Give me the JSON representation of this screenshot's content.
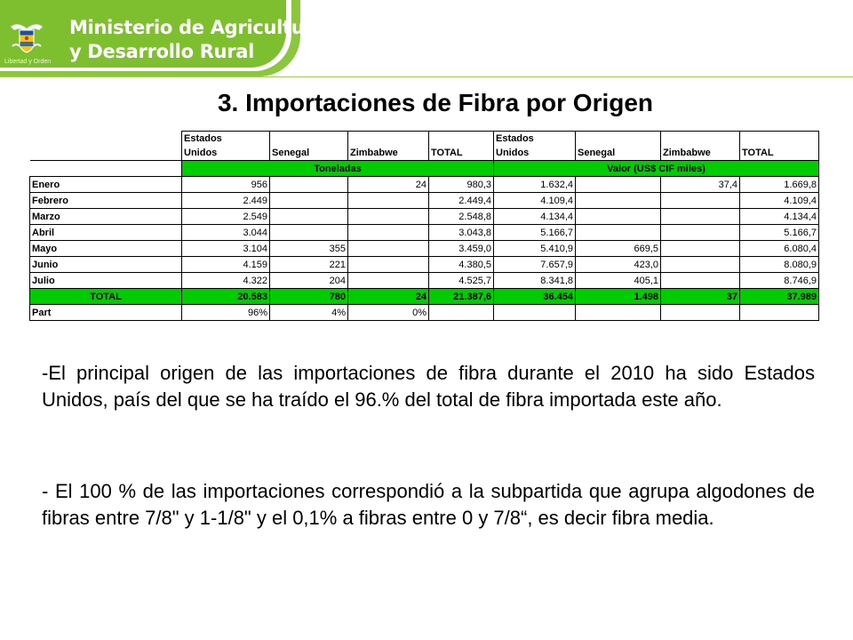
{
  "header": {
    "ministry_line1": "Ministerio de Agricultura",
    "ministry_line2": "y Desarrollo Rural",
    "seal_motto": "Libertad y Orden",
    "brand_green": "#7dbf2e",
    "logo_icon": "coat-of-arms-icon"
  },
  "title": "3.  Importaciones de Fibra por Origen",
  "table": {
    "columns": {
      "tons_us_line1": "Estados",
      "tons_us_line2": "Unidos",
      "tons_senegal": "Senegal",
      "tons_zimbabwe": "Zimbabwe",
      "tons_total": "TOTAL",
      "val_us_line1": "Estados",
      "val_us_line2": "Unidos",
      "val_senegal": "Senegal",
      "val_zimbabwe": "Zimbabwe",
      "val_total": "TOTAL"
    },
    "units_tons": "Toneladas",
    "units_value": "Valor (US$ CIF miles)",
    "rows": [
      {
        "month": "Enero",
        "t_us": "956",
        "t_sen": "",
        "t_zim": "24",
        "t_tot": "980,3",
        "v_us": "1.632,4",
        "v_sen": "",
        "v_zim": "37,4",
        "v_tot": "1.669,8"
      },
      {
        "month": "Febrero",
        "t_us": "2.449",
        "t_sen": "",
        "t_zim": "",
        "t_tot": "2.449,4",
        "v_us": "4.109,4",
        "v_sen": "",
        "v_zim": "",
        "v_tot": "4.109,4"
      },
      {
        "month": "Marzo",
        "t_us": "2.549",
        "t_sen": "",
        "t_zim": "",
        "t_tot": "2.548,8",
        "v_us": "4.134,4",
        "v_sen": "",
        "v_zim": "",
        "v_tot": "4.134,4"
      },
      {
        "month": "Abril",
        "t_us": "3.044",
        "t_sen": "",
        "t_zim": "",
        "t_tot": "3.043,8",
        "v_us": "5.166,7",
        "v_sen": "",
        "v_zim": "",
        "v_tot": "5.166,7"
      },
      {
        "month": "Mayo",
        "t_us": "3.104",
        "t_sen": "355",
        "t_zim": "",
        "t_tot": "3.459,0",
        "v_us": "5.410,9",
        "v_sen": "669,5",
        "v_zim": "",
        "v_tot": "6.080,4"
      },
      {
        "month": "Junio",
        "t_us": "4.159",
        "t_sen": "221",
        "t_zim": "",
        "t_tot": "4.380,5",
        "v_us": "7.657,9",
        "v_sen": "423,0",
        "v_zim": "",
        "v_tot": "8.080,9"
      },
      {
        "month": "Julio",
        "t_us": "4.322",
        "t_sen": "204",
        "t_zim": "",
        "t_tot": "4.525,7",
        "v_us": "8.341,8",
        "v_sen": "405,1",
        "v_zim": "",
        "v_tot": "8.746,9"
      }
    ],
    "total": {
      "label": "TOTAL",
      "t_us": "20.583",
      "t_sen": "780",
      "t_zim": "24",
      "t_tot": "21.387,6",
      "v_us": "36.454",
      "v_sen": "1.498",
      "v_zim": "37",
      "v_tot": "37.989"
    },
    "part": {
      "label": "Part",
      "t_us": "96%",
      "t_sen": "4%",
      "t_zim": "0%"
    },
    "highlight_green": "#00cc00"
  },
  "paragraphs": {
    "p1": "-El principal origen de las importaciones de fibra durante el 2010 ha sido Estados Unidos, país del que se ha traído el 96.% del total de fibra importada este año.",
    "p2": "- El  100 % de las importaciones correspondió a la subpartida que agrupa algodones de fibras entre 7/8\" y 1-1/8\" y el 0,1% a fibras entre 0 y 7/8“, es decir fibra media."
  }
}
